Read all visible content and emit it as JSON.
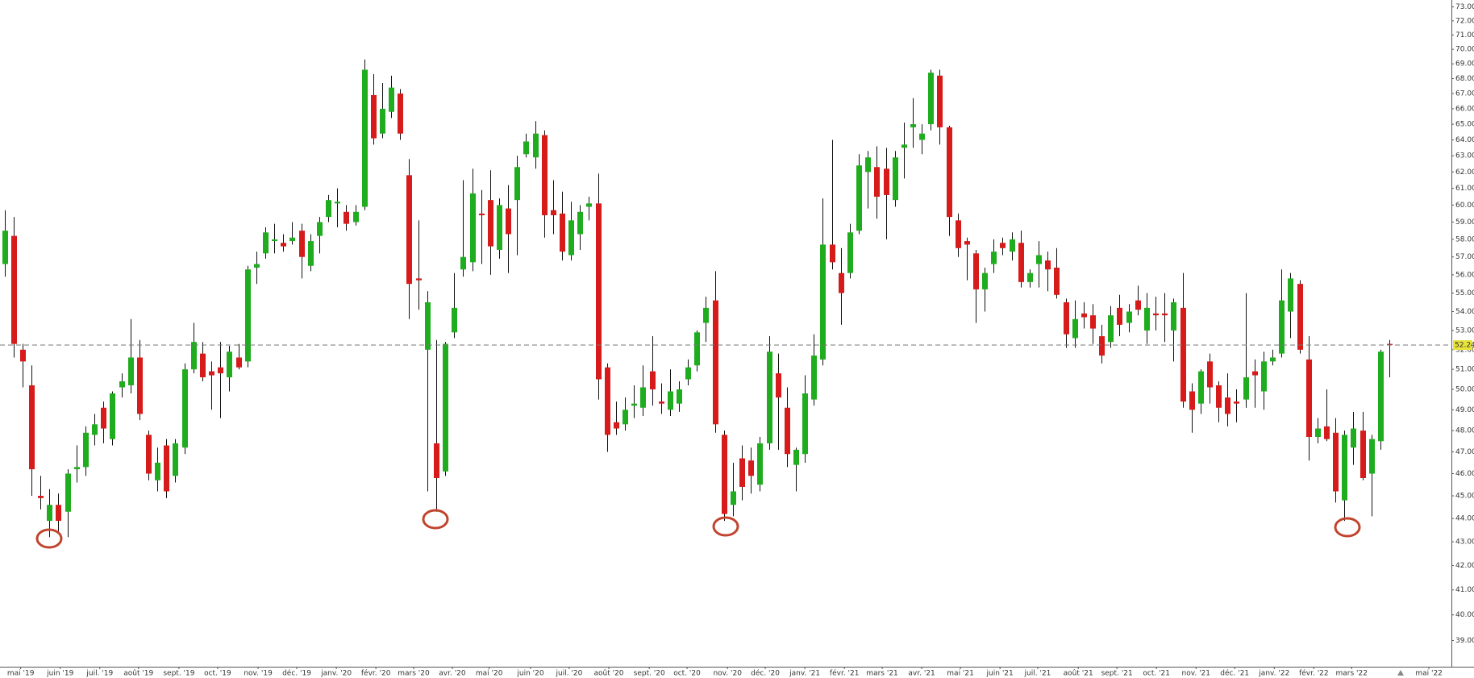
{
  "chart_data": {
    "type": "candlestick",
    "up_color": "#1fad1f",
    "down_color": "#d71a1a",
    "wick_color": "#111111",
    "log_scale": true,
    "ylim": [
      38,
      73.5
    ],
    "yticks": [
      {
        "value": 73,
        "label": "73.00"
      },
      {
        "value": 72,
        "label": "72.00"
      },
      {
        "value": 71,
        "label": "71.00"
      },
      {
        "value": 70,
        "label": "70.00"
      },
      {
        "value": 69,
        "label": "69.00"
      },
      {
        "value": 68,
        "label": "68.00"
      },
      {
        "value": 67,
        "label": "67.00"
      },
      {
        "value": 66,
        "label": "66.00"
      },
      {
        "value": 65,
        "label": "65.00"
      },
      {
        "value": 64,
        "label": "64.00"
      },
      {
        "value": 63,
        "label": "63.00"
      },
      {
        "value": 62,
        "label": "62.00"
      },
      {
        "value": 61,
        "label": "61.00"
      },
      {
        "value": 60,
        "label": "60.00"
      },
      {
        "value": 59,
        "label": "59.00"
      },
      {
        "value": 58,
        "label": "58.00"
      },
      {
        "value": 57,
        "label": "57.00"
      },
      {
        "value": 56,
        "label": "56.00"
      },
      {
        "value": 55,
        "label": "55.00"
      },
      {
        "value": 54,
        "label": "54.00"
      },
      {
        "value": 53,
        "label": "53.00"
      },
      {
        "value": 52,
        "label": "52.00"
      },
      {
        "value": 51,
        "label": "51.00"
      },
      {
        "value": 50,
        "label": "50.00"
      },
      {
        "value": 49,
        "label": "49.00"
      },
      {
        "value": 48,
        "label": "48.00"
      },
      {
        "value": 47,
        "label": "47.00"
      },
      {
        "value": 46,
        "label": "46.00"
      },
      {
        "value": 45,
        "label": "45.00"
      },
      {
        "value": 44,
        "label": "44.00"
      },
      {
        "value": 43,
        "label": "43.00"
      },
      {
        "value": 42,
        "label": "42.00"
      },
      {
        "value": 41,
        "label": "41.00"
      },
      {
        "value": 40,
        "label": "40.00"
      },
      {
        "value": 39,
        "label": "39.00"
      }
    ],
    "xlim": [
      -0.5,
      160.9
    ],
    "xticks": [
      {
        "value": 1.8,
        "label": "mai '19"
      },
      {
        "value": 6.2,
        "label": "juin '19"
      },
      {
        "value": 10.6,
        "label": "juil. '19"
      },
      {
        "value": 14.9,
        "label": "août '19"
      },
      {
        "value": 19.4,
        "label": "sept. '19"
      },
      {
        "value": 23.7,
        "label": "oct. '19"
      },
      {
        "value": 28.2,
        "label": "nov. '19"
      },
      {
        "value": 32.5,
        "label": "déc. '19"
      },
      {
        "value": 36.9,
        "label": "janv. '20"
      },
      {
        "value": 41.3,
        "label": "févr. '20"
      },
      {
        "value": 45.5,
        "label": "mars '20"
      },
      {
        "value": 49.8,
        "label": "avr. '20"
      },
      {
        "value": 53.9,
        "label": "mai '20"
      },
      {
        "value": 58.5,
        "label": "juin '20"
      },
      {
        "value": 62.8,
        "label": "juil. '20"
      },
      {
        "value": 67.2,
        "label": "août '20"
      },
      {
        "value": 71.7,
        "label": "sept. '20"
      },
      {
        "value": 75.9,
        "label": "oct. '20"
      },
      {
        "value": 80.4,
        "label": "nov. '20"
      },
      {
        "value": 84.6,
        "label": "déc. '20"
      },
      {
        "value": 89.0,
        "label": "janv. '21"
      },
      {
        "value": 93.4,
        "label": "févr. '21"
      },
      {
        "value": 97.6,
        "label": "mars '21"
      },
      {
        "value": 102.0,
        "label": "avr. '21"
      },
      {
        "value": 106.3,
        "label": "mai '21"
      },
      {
        "value": 110.7,
        "label": "juin '21"
      },
      {
        "value": 114.9,
        "label": "juil. '21"
      },
      {
        "value": 119.4,
        "label": "août '21"
      },
      {
        "value": 123.7,
        "label": "sept. '21"
      },
      {
        "value": 128.1,
        "label": "oct. '21"
      },
      {
        "value": 132.5,
        "label": "nov. '21"
      },
      {
        "value": 136.8,
        "label": "déc. '21"
      },
      {
        "value": 141.2,
        "label": "janv. '22"
      },
      {
        "value": 145.6,
        "label": "févr. '22"
      },
      {
        "value": 149.8,
        "label": "mars '22"
      },
      {
        "value": 158.4,
        "label": "mai '22"
      }
    ],
    "last_price": 52.24,
    "candles": [
      [
        56.6,
        59.7,
        55.9,
        58.5
      ],
      [
        58.2,
        59.3,
        51.6,
        52.3
      ],
      [
        52,
        52.3,
        50.1,
        51.4
      ],
      [
        50.2,
        51.2,
        45,
        46.2
      ],
      [
        45,
        45.9,
        44.4,
        44.9
      ],
      [
        43.9,
        45.3,
        43.2,
        44.6
      ],
      [
        44.6,
        45.1,
        43.4,
        43.9
      ],
      [
        44.3,
        46.2,
        43.2,
        46
      ],
      [
        46.2,
        47.3,
        45.6,
        46.3
      ],
      [
        46.3,
        48.2,
        45.9,
        47.9
      ],
      [
        47.8,
        48.8,
        47.3,
        48.3
      ],
      [
        49.1,
        49.4,
        47.4,
        48.1
      ],
      [
        47.6,
        49.9,
        47.3,
        49.8
      ],
      [
        50.1,
        50.8,
        49.6,
        50.4
      ],
      [
        50.2,
        53.6,
        49.8,
        51.6
      ],
      [
        51.6,
        52.5,
        48.5,
        48.8
      ],
      [
        47.8,
        48,
        45.7,
        46
      ],
      [
        45.7,
        47.2,
        45.2,
        46.5
      ],
      [
        47.3,
        47.6,
        44.9,
        45.2
      ],
      [
        45.9,
        47.6,
        45.6,
        47.4
      ],
      [
        47.2,
        51.3,
        46.9,
        51
      ],
      [
        51,
        53.4,
        50.8,
        52.4
      ],
      [
        51.8,
        52.4,
        50.4,
        50.6
      ],
      [
        50.9,
        51.4,
        49,
        50.7
      ],
      [
        51.1,
        52.4,
        48.6,
        50.8
      ],
      [
        50.6,
        52.2,
        49.9,
        51.9
      ],
      [
        51.6,
        52.3,
        51,
        51.1
      ],
      [
        51.4,
        56.5,
        51.1,
        56.3
      ],
      [
        56.4,
        57.3,
        55.5,
        56.6
      ],
      [
        57.2,
        58.7,
        56.9,
        58.4
      ],
      [
        57.9,
        58.9,
        57.2,
        58
      ],
      [
        57.8,
        58.3,
        57.3,
        57.6
      ],
      [
        57.9,
        59,
        57.7,
        58.1
      ],
      [
        58.5,
        58.9,
        55.8,
        57
      ],
      [
        56.5,
        58.3,
        56.2,
        57.9
      ],
      [
        58.2,
        59.3,
        57.2,
        59
      ],
      [
        59.3,
        60.6,
        59,
        60.3
      ],
      [
        60.1,
        61,
        58.7,
        60.2
      ],
      [
        59.6,
        60,
        58.5,
        58.9
      ],
      [
        59,
        60,
        58.8,
        59.6
      ],
      [
        59.9,
        69.3,
        59.7,
        68.6
      ],
      [
        66.9,
        68.3,
        63.7,
        64.1
      ],
      [
        64.4,
        67.7,
        64.1,
        66
      ],
      [
        65.8,
        68.2,
        65.4,
        67.4
      ],
      [
        67,
        67.3,
        64,
        64.4
      ],
      [
        61.8,
        62.8,
        53.6,
        55.5
      ],
      [
        55.8,
        59.1,
        54.1,
        55.7
      ],
      [
        52,
        55.1,
        45.2,
        54.5
      ],
      [
        47.4,
        52.5,
        44.3,
        45.8
      ],
      [
        46.1,
        52.4,
        45.9,
        52.3
      ],
      [
        52.9,
        56.1,
        52.6,
        54.2
      ],
      [
        56.3,
        61.5,
        55.9,
        57
      ],
      [
        56.7,
        62.2,
        56.2,
        60.7
      ],
      [
        59.5,
        60.9,
        56.6,
        59.4
      ],
      [
        60.3,
        62.1,
        56,
        57.6
      ],
      [
        57.4,
        60.4,
        56.9,
        60
      ],
      [
        59.8,
        61.2,
        56.1,
        58.3
      ],
      [
        60.3,
        63,
        57.1,
        62.3
      ],
      [
        63.1,
        64.4,
        62.9,
        63.9
      ],
      [
        62.9,
        65.2,
        62.2,
        64.4
      ],
      [
        64.3,
        64.6,
        58.1,
        59.4
      ],
      [
        59.7,
        61.5,
        58.3,
        59.4
      ],
      [
        59.5,
        60.8,
        56.8,
        57.3
      ],
      [
        57.1,
        60.2,
        56.8,
        59.1
      ],
      [
        58.3,
        60,
        57.4,
        59.6
      ],
      [
        59.9,
        60.5,
        59.1,
        60.1
      ],
      [
        60.1,
        61.9,
        49.5,
        50.5
      ],
      [
        51.1,
        51.3,
        47,
        47.8
      ],
      [
        48.4,
        49.4,
        47.8,
        48.1
      ],
      [
        48.3,
        49.6,
        48,
        49
      ],
      [
        49.2,
        50.2,
        48.6,
        49.3
      ],
      [
        49.1,
        51.2,
        48.7,
        50.1
      ],
      [
        50.9,
        52.7,
        49.2,
        50
      ],
      [
        49.4,
        50.3,
        48.8,
        49.3
      ],
      [
        49,
        51,
        48.7,
        49.9
      ],
      [
        49.3,
        50.4,
        48.9,
        50
      ],
      [
        50.5,
        51.5,
        50.2,
        51.1
      ],
      [
        51.2,
        53,
        50.9,
        52.9
      ],
      [
        53.4,
        54.8,
        52.4,
        54.2
      ],
      [
        54.6,
        56.2,
        47.9,
        48.3
      ],
      [
        47.8,
        48,
        43.9,
        44.2
      ],
      [
        44.6,
        46.5,
        44.1,
        45.2
      ],
      [
        46.7,
        47.3,
        44.8,
        45.4
      ],
      [
        46.6,
        47.2,
        45.1,
        45.9
      ],
      [
        45.5,
        47.7,
        45.2,
        47.4
      ],
      [
        47.4,
        52.7,
        47.1,
        51.9
      ],
      [
        50.8,
        51.8,
        47.1,
        49.6
      ],
      [
        49.1,
        50.1,
        46.3,
        46.9
      ],
      [
        46.4,
        47.2,
        45.2,
        47.1
      ],
      [
        46.9,
        50.7,
        46.5,
        49.8
      ],
      [
        49.5,
        52.8,
        49.2,
        51.7
      ],
      [
        51.5,
        60.4,
        51.2,
        57.7
      ],
      [
        57.7,
        64,
        56.3,
        56.7
      ],
      [
        56.1,
        57.5,
        53.3,
        55
      ],
      [
        56.1,
        58.9,
        55.8,
        58.4
      ],
      [
        58.5,
        63.1,
        58.3,
        62.4
      ],
      [
        62,
        63.3,
        59.8,
        62.9
      ],
      [
        62.3,
        63.6,
        59.2,
        60.5
      ],
      [
        62.2,
        63.5,
        58,
        60.6
      ],
      [
        60.3,
        63.3,
        59.9,
        62.9
      ],
      [
        63.5,
        65.1,
        61.6,
        63.7
      ],
      [
        64.8,
        66.7,
        63.5,
        65
      ],
      [
        64,
        65,
        63.1,
        64.4
      ],
      [
        65,
        68.6,
        64.6,
        68.4
      ],
      [
        68.2,
        68.6,
        63.7,
        64.8
      ],
      [
        64.8,
        64.9,
        58.2,
        59.3
      ],
      [
        59.1,
        59.5,
        57,
        57.5
      ],
      [
        57.9,
        58.1,
        55.7,
        57.7
      ],
      [
        57.2,
        57.4,
        53.4,
        55.2
      ],
      [
        55.2,
        56.4,
        54,
        56.1
      ],
      [
        56.6,
        58,
        56.1,
        57.3
      ],
      [
        57.8,
        58.1,
        57.1,
        57.5
      ],
      [
        57.3,
        58.4,
        56.8,
        58
      ],
      [
        57.8,
        58.5,
        55.3,
        55.6
      ],
      [
        55.6,
        56.3,
        55.3,
        56.1
      ],
      [
        56.6,
        57.9,
        55.3,
        57.1
      ],
      [
        56.8,
        57.3,
        55.1,
        56.3
      ],
      [
        56.4,
        57.5,
        54.7,
        54.9
      ],
      [
        54.5,
        54.7,
        52.1,
        52.8
      ],
      [
        52.6,
        54.6,
        52.1,
        53.6
      ],
      [
        53.9,
        54.5,
        53.1,
        53.7
      ],
      [
        53.8,
        54.4,
        52.3,
        53.1
      ],
      [
        52.7,
        53.3,
        51.3,
        51.7
      ],
      [
        52.4,
        54.3,
        52.1,
        53.8
      ],
      [
        54.2,
        54.9,
        52.7,
        53.3
      ],
      [
        53.4,
        54.4,
        52.9,
        54
      ],
      [
        54.6,
        55.4,
        53.8,
        54.1
      ],
      [
        53,
        55,
        52.3,
        54.2
      ],
      [
        53.9,
        54.8,
        53,
        53.8
      ],
      [
        53.9,
        55,
        52.4,
        53.8
      ],
      [
        53,
        54.7,
        51.4,
        54.5
      ],
      [
        54.2,
        56.1,
        49.1,
        49.4
      ],
      [
        49.9,
        50.3,
        47.9,
        49
      ],
      [
        49.3,
        51,
        48.8,
        50.9
      ],
      [
        51.4,
        51.8,
        49.3,
        50.1
      ],
      [
        50.2,
        50.4,
        48.4,
        49.1
      ],
      [
        49.6,
        50.8,
        48.2,
        48.8
      ],
      [
        49.4,
        50,
        48.4,
        49.3
      ],
      [
        49.5,
        55,
        49.1,
        50.6
      ],
      [
        50.9,
        51.5,
        49.1,
        50.7
      ],
      [
        49.9,
        51.9,
        49,
        51.4
      ],
      [
        51.4,
        52,
        51.2,
        51.6
      ],
      [
        51.8,
        56.3,
        51.6,
        54.6
      ],
      [
        54,
        56.1,
        52.6,
        55.8
      ],
      [
        55.5,
        55.7,
        51.8,
        52
      ],
      [
        51.5,
        52.7,
        46.6,
        47.7
      ],
      [
        47.7,
        48.6,
        47.4,
        48.1
      ],
      [
        48.2,
        50,
        47.5,
        47.6
      ],
      [
        47.9,
        48.6,
        44.7,
        45.2
      ],
      [
        44.8,
        48,
        43.9,
        47.8
      ],
      [
        47.2,
        48.9,
        46.4,
        48.1
      ],
      [
        48,
        48.9,
        45.7,
        45.8
      ],
      [
        46,
        47.8,
        44.1,
        47.6
      ],
      [
        47.5,
        52,
        47.1,
        51.9
      ],
      [
        52.3,
        52.5,
        50.6,
        52.24
      ]
    ]
  }
}
